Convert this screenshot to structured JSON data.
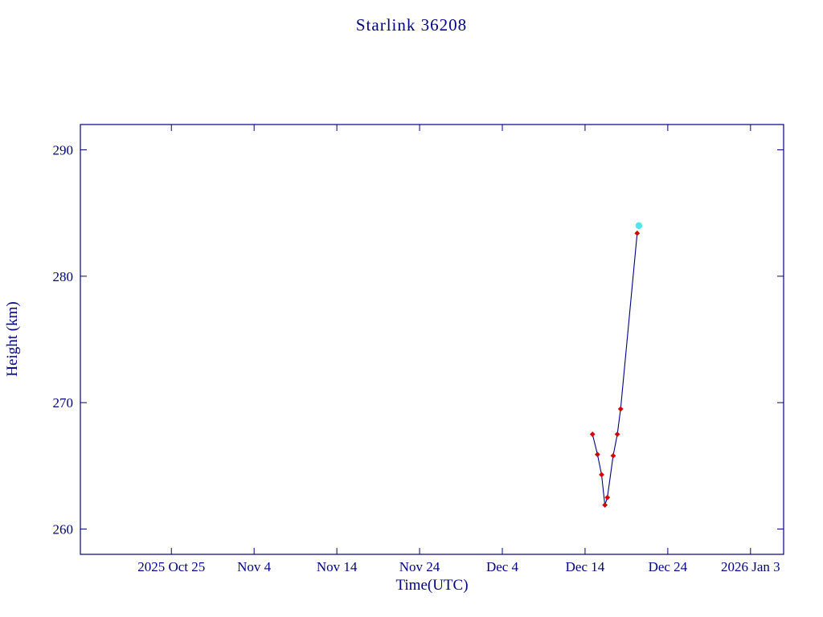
{
  "chart_data": {
    "type": "line",
    "title": "Starlink 36208",
    "xlabel": "Time(UTC)",
    "ylabel": "Height (km)",
    "x_axis": {
      "unit": "days since 2025 Oct 15",
      "lim": [
        -1,
        84
      ],
      "ticks": [
        {
          "v": 10,
          "label": "2025 Oct 25"
        },
        {
          "v": 20,
          "label": "Nov 4"
        },
        {
          "v": 30,
          "label": "Nov 14"
        },
        {
          "v": 40,
          "label": "Nov 24"
        },
        {
          "v": 50,
          "label": "Dec 4"
        },
        {
          "v": 60,
          "label": "Dec 14"
        },
        {
          "v": 70,
          "label": "Dec 24"
        },
        {
          "v": 80,
          "label": "2026 Jan 3"
        }
      ]
    },
    "y_axis": {
      "lim": [
        258,
        292
      ],
      "ticks": [
        {
          "v": 260,
          "label": "260"
        },
        {
          "v": 270,
          "label": "270"
        },
        {
          "v": 280,
          "label": "280"
        },
        {
          "v": 290,
          "label": "290"
        }
      ]
    },
    "series": [
      {
        "name": "observed-height",
        "marker": "diamond",
        "color": "#d40000",
        "line_color": "#000080",
        "points": [
          [
            60.9,
            267.5
          ],
          [
            61.5,
            265.9
          ],
          [
            62.0,
            264.3
          ],
          [
            62.4,
            261.9
          ],
          [
            62.7,
            262.5
          ],
          [
            63.4,
            265.8
          ],
          [
            63.9,
            267.5
          ],
          [
            64.3,
            269.5
          ],
          [
            66.3,
            283.4
          ]
        ]
      },
      {
        "name": "latest-point",
        "marker": "circle",
        "color": "#4de8e8",
        "points": [
          [
            66.5,
            284.0
          ]
        ]
      }
    ],
    "colors": {
      "frame": "#000080",
      "text": "#000080",
      "background": "#ffffff"
    }
  }
}
